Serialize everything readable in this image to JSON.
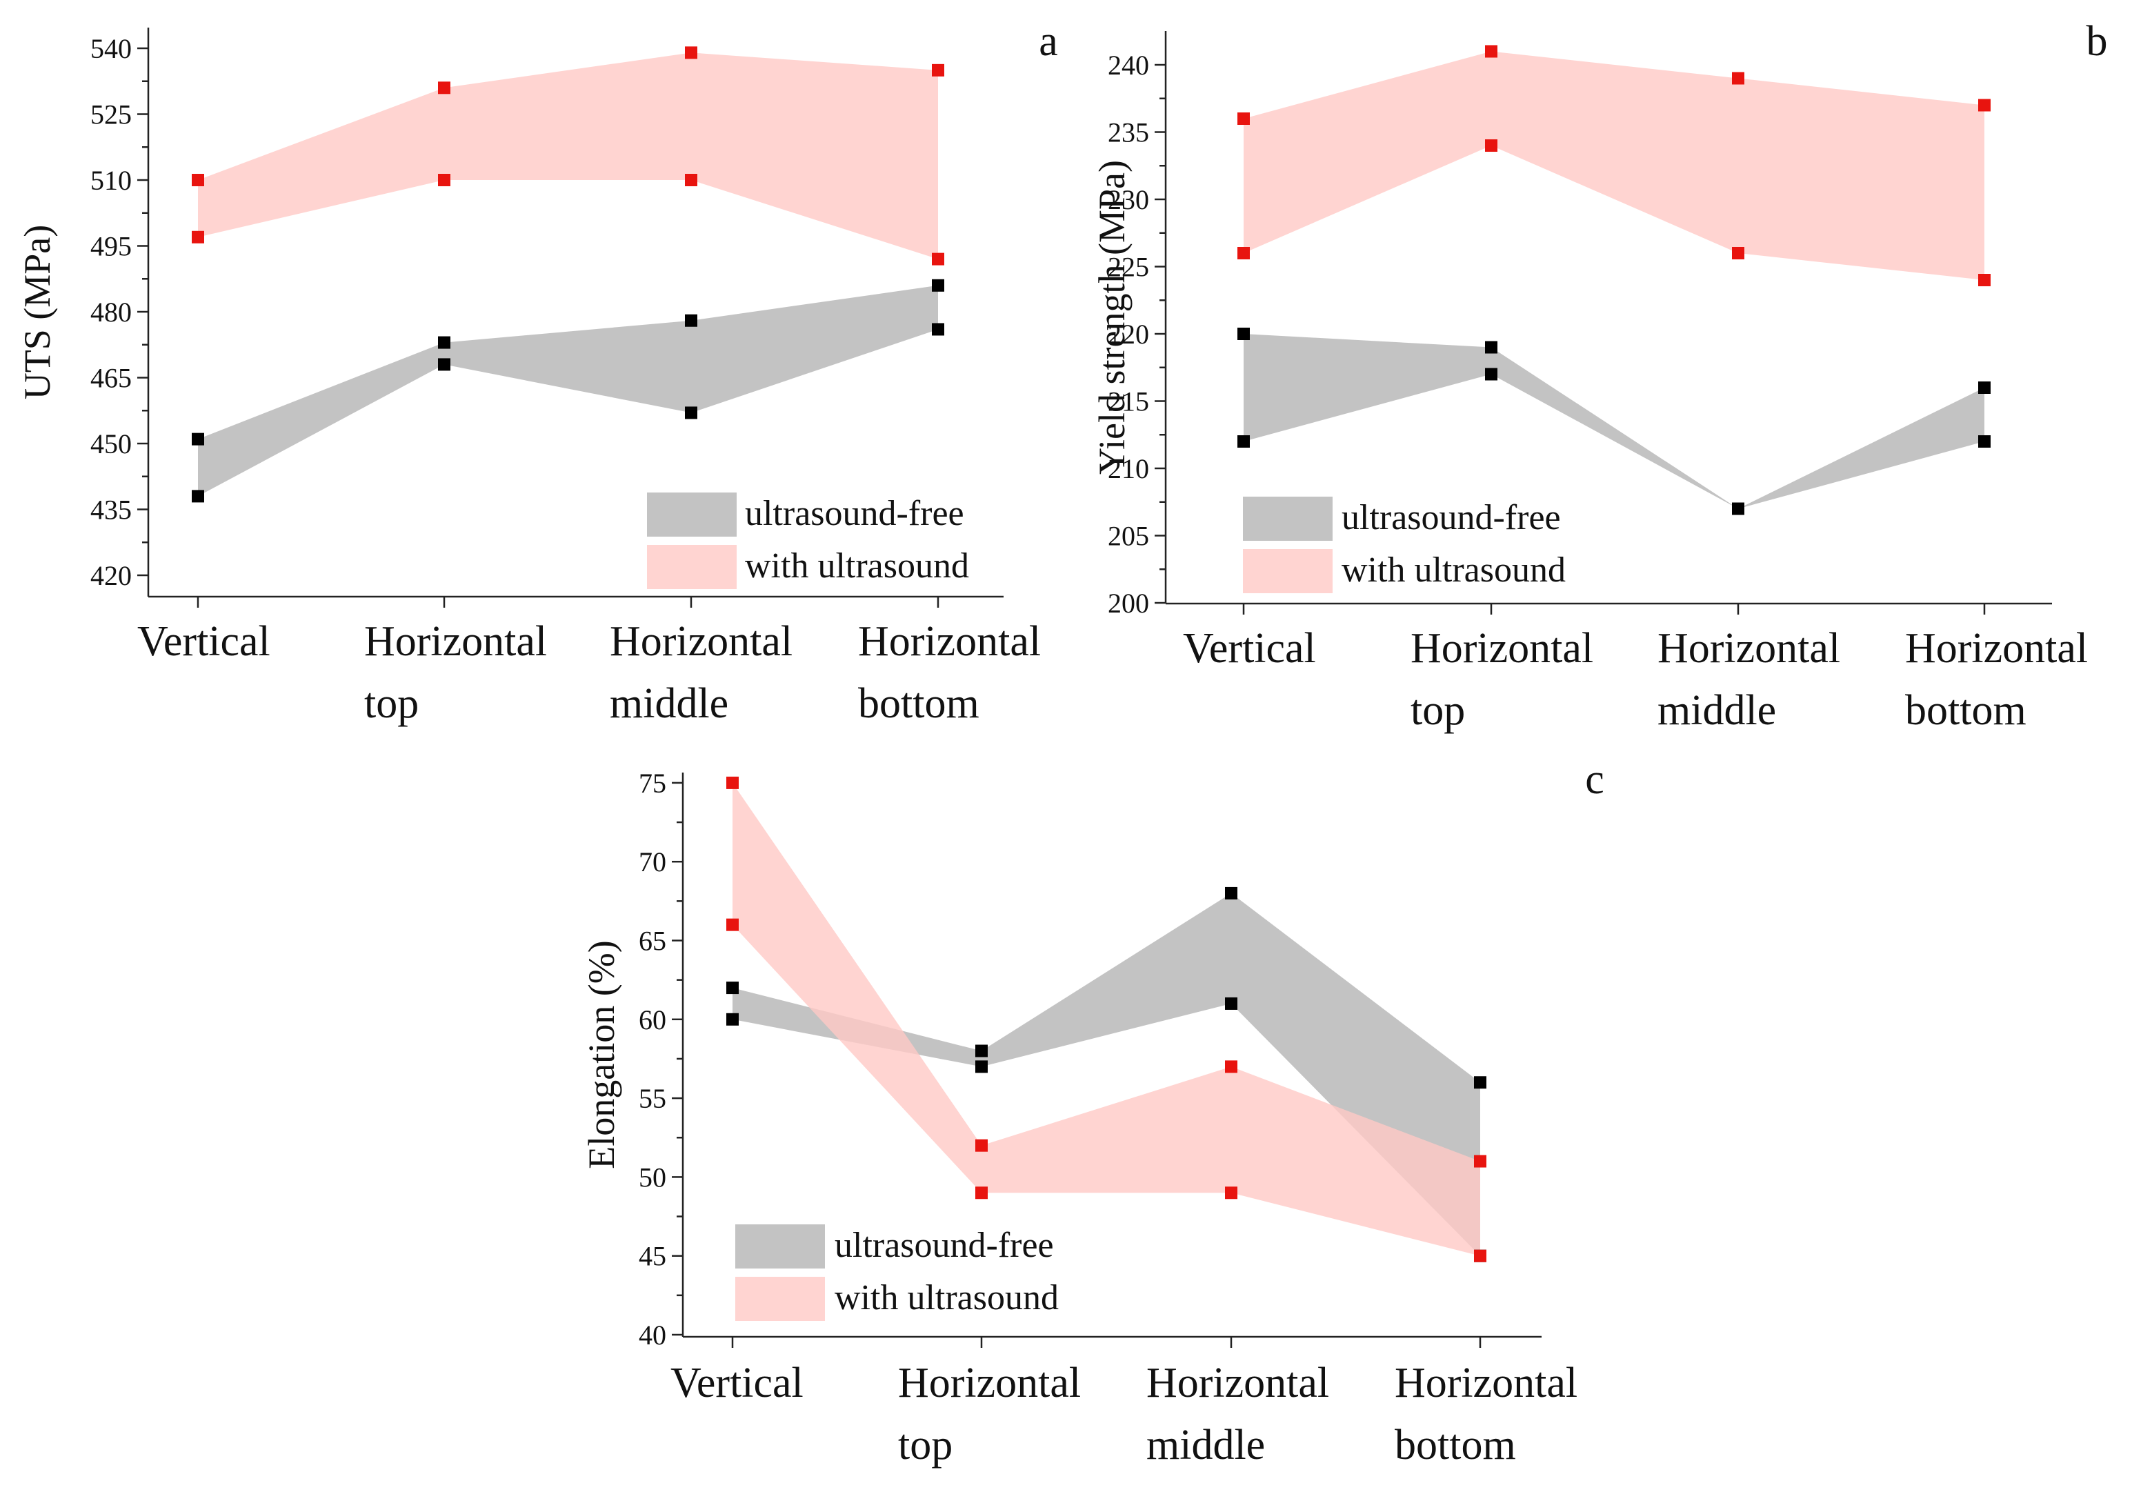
{
  "chart_data": [
    {
      "type": "area",
      "panel": "a",
      "title": "",
      "xlabel": "",
      "ylabel": "UTS (MPa)",
      "ylim": [
        415,
        545
      ],
      "yticks": [
        420,
        435,
        450,
        465,
        480,
        495,
        510,
        525,
        540
      ],
      "categories": [
        [
          "Vertical"
        ],
        [
          "Horizontal",
          "top"
        ],
        [
          "Horizontal",
          "middle"
        ],
        [
          "Horizontal",
          "bottom"
        ]
      ],
      "legend_position": "bottom-right",
      "series": [
        {
          "name": "ultrasound-free",
          "color": "#b8b8b8",
          "marker_color": "#000000",
          "lower": [
            438,
            468,
            457,
            476
          ],
          "upper": [
            451,
            473,
            478,
            486
          ]
        },
        {
          "name": "with ultrasound",
          "color": "#ffc9c6",
          "marker_color": "#e8140f",
          "lower": [
            497,
            510,
            510,
            492
          ],
          "upper": [
            510,
            531,
            539,
            535
          ]
        }
      ]
    },
    {
      "type": "area",
      "panel": "b",
      "title": "",
      "xlabel": "",
      "ylabel": "Yield strength (MPa)",
      "ylim": [
        200,
        242
      ],
      "yticks": [
        200,
        205,
        210,
        215,
        220,
        225,
        230,
        235,
        240
      ],
      "categories": [
        [
          "Vertical"
        ],
        [
          "Horizontal",
          "top"
        ],
        [
          "Horizontal",
          "middle"
        ],
        [
          "Horizontal",
          "bottom"
        ]
      ],
      "legend_position": "bottom-left",
      "series": [
        {
          "name": "ultrasound-free",
          "color": "#b8b8b8",
          "marker_color": "#000000",
          "lower": [
            212,
            217,
            207,
            212
          ],
          "upper": [
            220,
            219,
            207,
            216
          ]
        },
        {
          "name": "with ultrasound",
          "color": "#ffc9c6",
          "marker_color": "#e8140f",
          "lower": [
            226,
            234,
            226,
            224
          ],
          "upper": [
            236,
            241,
            239,
            237
          ]
        }
      ]
    },
    {
      "type": "area",
      "panel": "c",
      "title": "",
      "xlabel": "",
      "ylabel": "Elongation (%)",
      "ylim": [
        40,
        76
      ],
      "yticks": [
        40,
        45,
        50,
        55,
        60,
        65,
        70,
        75
      ],
      "categories": [
        [
          "Vertical"
        ],
        [
          "Horizontal",
          "top"
        ],
        [
          "Horizontal",
          "middle"
        ],
        [
          "Horizontal",
          "bottom"
        ]
      ],
      "legend_position": "bottom-left",
      "series": [
        {
          "name": "ultrasound-free",
          "color": "#b8b8b8",
          "marker_color": "#000000",
          "start": [
            62,
            58,
            68,
            56
          ],
          "end": [
            60,
            57,
            61,
            45
          ]
        },
        {
          "name": "with ultrasound",
          "color": "#ffc9c6",
          "marker_color": "#e8140f",
          "start": [
            75,
            52,
            57,
            51
          ],
          "end": [
            66,
            49,
            49,
            45
          ]
        }
      ]
    }
  ]
}
